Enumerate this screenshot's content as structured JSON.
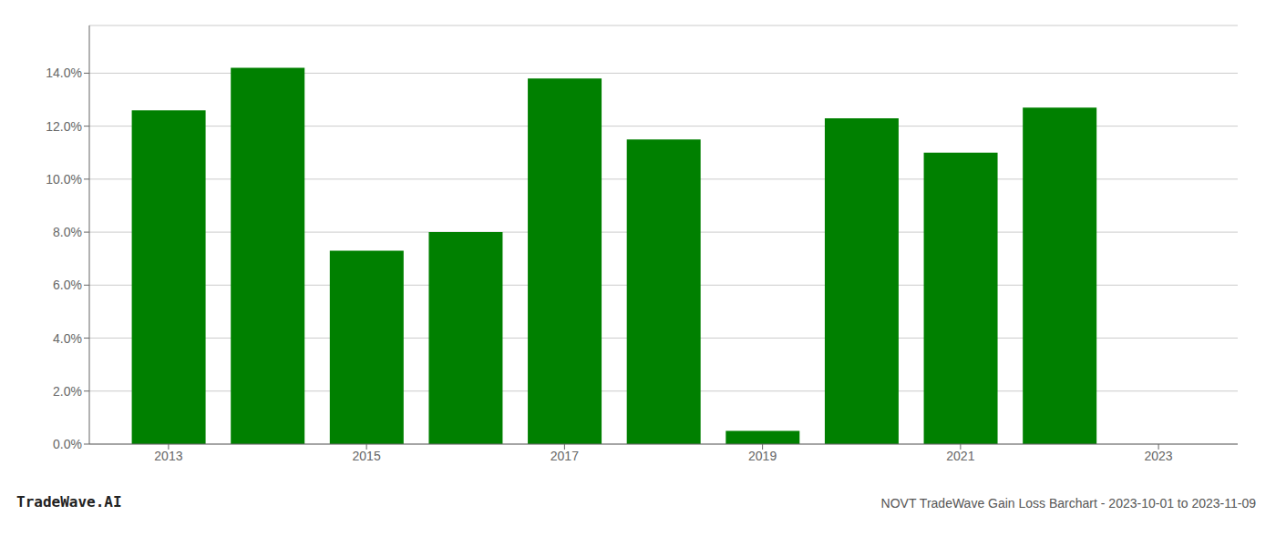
{
  "chart_data": {
    "type": "bar",
    "title": "NOVT TradeWave Gain Loss Barchart - 2023-10-01 to 2023-11-09",
    "annotations": [
      "TradeWave.AI"
    ],
    "x": [
      2013,
      2014,
      2015,
      2016,
      2017,
      2018,
      2019,
      2020,
      2021,
      2022,
      2023
    ],
    "values": [
      0.126,
      0.142,
      0.073,
      0.08,
      0.138,
      0.115,
      0.005,
      0.123,
      0.11,
      0.127,
      null
    ],
    "color": "#008000",
    "xlim": [
      2012.2,
      2023.8
    ],
    "xticks": [
      2013,
      2015,
      2017,
      2019,
      2021,
      2023
    ],
    "ylim": [
      0,
      0.158
    ],
    "yticks": [
      {
        "value": 0.0,
        "label": "0.0%"
      },
      {
        "value": 0.02,
        "label": "2.0%"
      },
      {
        "value": 0.04,
        "label": "4.0%"
      },
      {
        "value": 0.06,
        "label": "6.0%"
      },
      {
        "value": 0.08,
        "label": "8.0%"
      },
      {
        "value": 0.1,
        "label": "10.0%"
      },
      {
        "value": 0.12,
        "label": "12.0%"
      },
      {
        "value": 0.14,
        "label": "14.0%"
      }
    ],
    "grid": true
  }
}
